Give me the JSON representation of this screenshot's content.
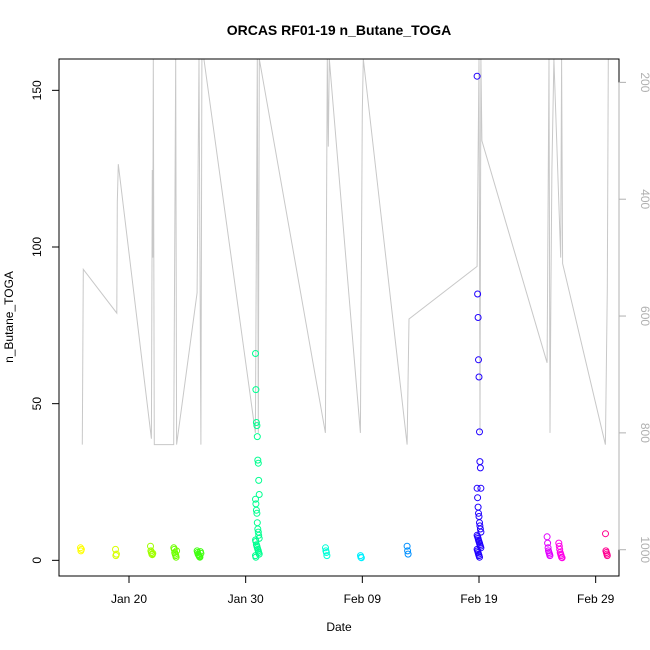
{
  "chart_data": {
    "type": "scatter",
    "title": "ORCAS RF01-19 n_Butane_TOGA",
    "xlabel": "Date",
    "ylabel": "n_Butane_TOGA",
    "x_ticks": [
      "Jan 20",
      "Jan 30",
      "Feb 09",
      "Feb 19",
      "Feb 29"
    ],
    "y_ticks": [
      0,
      50,
      100,
      150
    ],
    "y2_ticks": [
      200,
      400,
      600,
      800,
      1000
    ],
    "xlim": [
      "2016-01-14",
      "2016-03-02"
    ],
    "ylim": [
      -5,
      160
    ],
    "y2lim": [
      1045,
      160
    ],
    "grid": false,
    "colors": {
      "gray_line": "#c8c8c8",
      "axis": "#000000",
      "right_axis": "#b0b0b0"
    },
    "series": [
      {
        "date": "2016-01-16",
        "color": "#ffff00",
        "values": [
          4,
          3,
          3.5
        ]
      },
      {
        "date": "2016-01-19",
        "color": "#d8ff00",
        "values": [
          3.5,
          1.5,
          2
        ]
      },
      {
        "date": "2016-01-22",
        "color": "#a0ff00",
        "values": [
          4.5,
          3,
          2.5,
          2,
          1.8,
          2.2
        ]
      },
      {
        "date": "2016-01-24",
        "color": "#70ff00",
        "values": [
          4,
          3.5,
          2.5,
          2,
          1.5,
          1,
          3
        ]
      },
      {
        "date": "2016-01-26",
        "color": "#40ff10",
        "values": [
          3,
          2.5,
          2,
          1.8,
          1.5,
          1.2,
          1,
          2.8,
          2.2
        ]
      },
      {
        "date": "2016-01-31",
        "color": "#00ff90",
        "values": [
          66,
          54.5,
          44,
          43,
          39.5,
          32,
          31,
          25.5,
          21,
          19.5,
          18,
          16,
          15,
          12,
          10,
          9,
          8,
          7,
          6.5,
          6,
          5,
          4.5,
          4,
          3.5,
          3,
          2.5,
          2,
          1.5,
          1
        ]
      },
      {
        "date": "2016-02-06",
        "color": "#00ffd8",
        "values": [
          4,
          3,
          2.5,
          1.5
        ]
      },
      {
        "date": "2016-02-09",
        "color": "#00f0ff",
        "values": [
          1.5,
          1,
          0.8
        ]
      },
      {
        "date": "2016-02-13",
        "color": "#0090ff",
        "values": [
          4.5,
          3,
          2
        ]
      },
      {
        "date": "2016-02-19",
        "color": "#2000ff",
        "values": [
          154.5,
          85,
          77.5,
          64,
          58.5,
          41,
          31.5,
          29.5,
          23,
          23,
          20,
          17,
          15,
          14,
          12,
          11,
          10,
          9,
          8,
          7.5,
          7,
          6.5,
          6,
          5.5,
          5,
          4.5,
          4,
          3.5,
          3,
          2.5,
          2,
          1.5,
          1
        ]
      },
      {
        "date": "2016-02-25",
        "color": "#e000ff",
        "values": [
          7.5,
          5.5,
          4,
          3,
          2.5,
          2,
          1.5
        ]
      },
      {
        "date": "2016-02-26",
        "color": "#ff00e8",
        "values": [
          5.5,
          4.5,
          3.5,
          2.5,
          2,
          1.5,
          1,
          0.8
        ]
      },
      {
        "date": "2016-03-01",
        "color": "#ff0090",
        "values": [
          8.5,
          3,
          2.5,
          2,
          1.5
        ]
      }
    ],
    "altitude_line": {
      "color": "#c8c8c8",
      "points": [
        [
          "2016-01-16T00:00",
          820
        ],
        [
          "2016-01-16T02:00",
          520
        ],
        [
          "2016-01-18T23:00",
          595
        ],
        [
          "2016-01-19T00:00",
          405
        ],
        [
          "2016-01-19T02:00",
          340
        ],
        [
          "2016-01-21T22:00",
          810
        ],
        [
          "2016-01-22T00:00",
          350
        ],
        [
          "2016-01-22T01:00",
          500
        ],
        [
          "2016-01-22T02:00",
          160
        ],
        [
          "2016-01-22T04:00",
          820
        ],
        [
          "2016-01-23T20:00",
          820
        ],
        [
          "2016-01-24T00:00",
          160
        ],
        [
          "2016-01-24T02:00",
          820
        ],
        [
          "2016-01-25T20:00",
          560
        ],
        [
          "2016-01-26T00:00",
          160
        ],
        [
          "2016-01-26T04:00",
          820
        ],
        [
          "2016-01-26T06:00",
          160
        ],
        [
          "2016-01-26T10:00",
          160
        ],
        [
          "2016-01-30T20:00",
          800
        ],
        [
          "2016-01-31T00:00",
          160
        ],
        [
          "2016-01-31T02:00",
          800
        ],
        [
          "2016-01-31T04:00",
          160
        ],
        [
          "2016-02-05T20:00",
          800
        ],
        [
          "2016-02-06T00:00",
          160
        ],
        [
          "2016-02-06T02:00",
          310
        ],
        [
          "2016-02-06T04:00",
          160
        ],
        [
          "2016-02-08T20:00",
          800
        ],
        [
          "2016-02-09T00:00",
          250
        ],
        [
          "2016-02-09T02:00",
          160
        ],
        [
          "2016-02-12T20:00",
          820
        ],
        [
          "2016-02-13T00:00",
          605
        ],
        [
          "2016-02-18T20:00",
          515
        ],
        [
          "2016-02-19T00:00",
          160
        ],
        [
          "2016-02-19T02:00",
          800
        ],
        [
          "2016-02-19T04:00",
          160
        ],
        [
          "2016-02-19T06:00",
          300
        ],
        [
          "2016-02-24T20:00",
          680
        ],
        [
          "2016-02-25T00:00",
          160
        ],
        [
          "2016-02-25T02:00",
          800
        ],
        [
          "2016-02-25T04:00",
          560
        ],
        [
          "2016-02-25T06:00",
          350
        ],
        [
          "2016-02-25T10:00",
          160
        ],
        [
          "2016-02-26T00:00",
          500
        ],
        [
          "2016-02-26T02:00",
          160
        ],
        [
          "2016-02-26T04:00",
          510
        ],
        [
          "2016-02-29T20:00",
          820
        ],
        [
          "2016-03-01T00:00",
          555
        ],
        [
          "2016-03-01T02:00",
          160
        ]
      ]
    }
  }
}
